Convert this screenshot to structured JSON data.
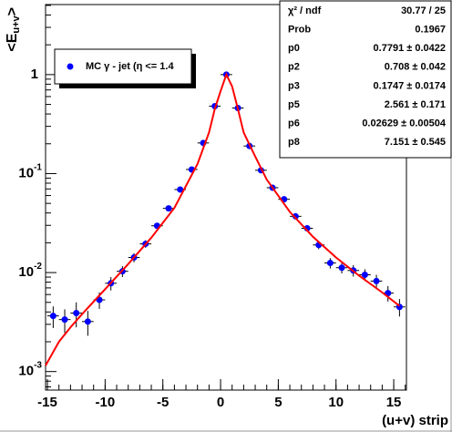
{
  "chart_data": {
    "type": "scatter",
    "x_label": "(u+v) strip",
    "y_label": {
      "main": "<E",
      "sub": "u+v",
      "end": ">"
    },
    "log_y": true,
    "xlim": [
      -15.16,
      16.1
    ],
    "ylim": [
      0.00065,
      5.1
    ],
    "xticks": [
      -15,
      -10,
      -5,
      0,
      5,
      10,
      15
    ],
    "yticks": [
      {
        "value": 0.001,
        "label": "10",
        "exponent": "-3"
      },
      {
        "value": 0.01,
        "label": "10",
        "exponent": "-2"
      },
      {
        "value": 0.1,
        "label": "10",
        "exponent": "-1"
      },
      1
    ],
    "series": [
      {
        "name": "MC γ - jet (η <= 1.4",
        "color": "#0000ff",
        "x": [
          -14.5,
          -13.5,
          -12.5,
          -11.5,
          -10.5,
          -9.5,
          -8.5,
          -7.5,
          -6.5,
          -5.5,
          -4.5,
          -3.5,
          -2.5,
          -1.5,
          -0.5,
          0.5,
          1.5,
          2.5,
          3.5,
          4.5,
          5.5,
          6.5,
          7.5,
          8.5,
          9.5,
          10.5,
          11.5,
          12.5,
          13.5,
          14.5,
          15.5
        ],
        "values": [
          0.00365,
          0.00335,
          0.0039,
          0.0032,
          0.0053,
          0.0078,
          0.0103,
          0.0142,
          0.0195,
          0.0297,
          0.0445,
          0.069,
          0.11,
          0.204,
          0.48,
          1.0,
          0.46,
          0.19,
          0.108,
          0.072,
          0.055,
          0.037,
          0.028,
          0.019,
          0.0125,
          0.0112,
          0.0105,
          0.0095,
          0.0082,
          0.0062,
          0.0045
        ],
        "errors": [
          0.0009,
          0.0009,
          0.0011,
          0.0009,
          0.001,
          0.0012,
          0.0013,
          0.0015,
          0.0017,
          0.002,
          0.0025,
          0.003,
          0.004,
          0.006,
          0.01,
          0.015,
          0.01,
          0.006,
          0.004,
          0.003,
          0.0028,
          0.0022,
          0.002,
          0.0018,
          0.0015,
          0.0014,
          0.0014,
          0.0013,
          0.0013,
          0.0011,
          0.0009
        ]
      },
      {
        "type": "line",
        "color": "#ff0000",
        "x": [
          -15.16,
          -14,
          -13,
          -12,
          -10,
          -8,
          -6,
          -4,
          -2,
          -1,
          -0.5,
          0,
          0.5,
          1,
          1.5,
          2,
          3,
          4,
          6,
          8,
          10,
          12,
          14,
          15.5
        ],
        "values": [
          0.00115,
          0.002,
          0.0028,
          0.0038,
          0.0068,
          0.0122,
          0.0225,
          0.045,
          0.125,
          0.26,
          0.45,
          0.68,
          1.0,
          0.76,
          0.45,
          0.26,
          0.149,
          0.087,
          0.041,
          0.023,
          0.0142,
          0.0093,
          0.0063,
          0.0046
        ]
      }
    ],
    "stats": [
      [
        "χ² / ndf",
        "30.77 / 25"
      ],
      [
        "Prob",
        "0.1967"
      ],
      [
        "p0",
        "0.7791 ± 0.0422"
      ],
      [
        "p2",
        "0.708 ± 0.042"
      ],
      [
        "p3",
        "0.1747 ± 0.0174"
      ],
      [
        "p5",
        "2.561 ± 0.171"
      ],
      [
        "p6",
        "0.02629 ± 0.00504"
      ],
      [
        "p8",
        "7.151 ± 0.545"
      ]
    ]
  }
}
